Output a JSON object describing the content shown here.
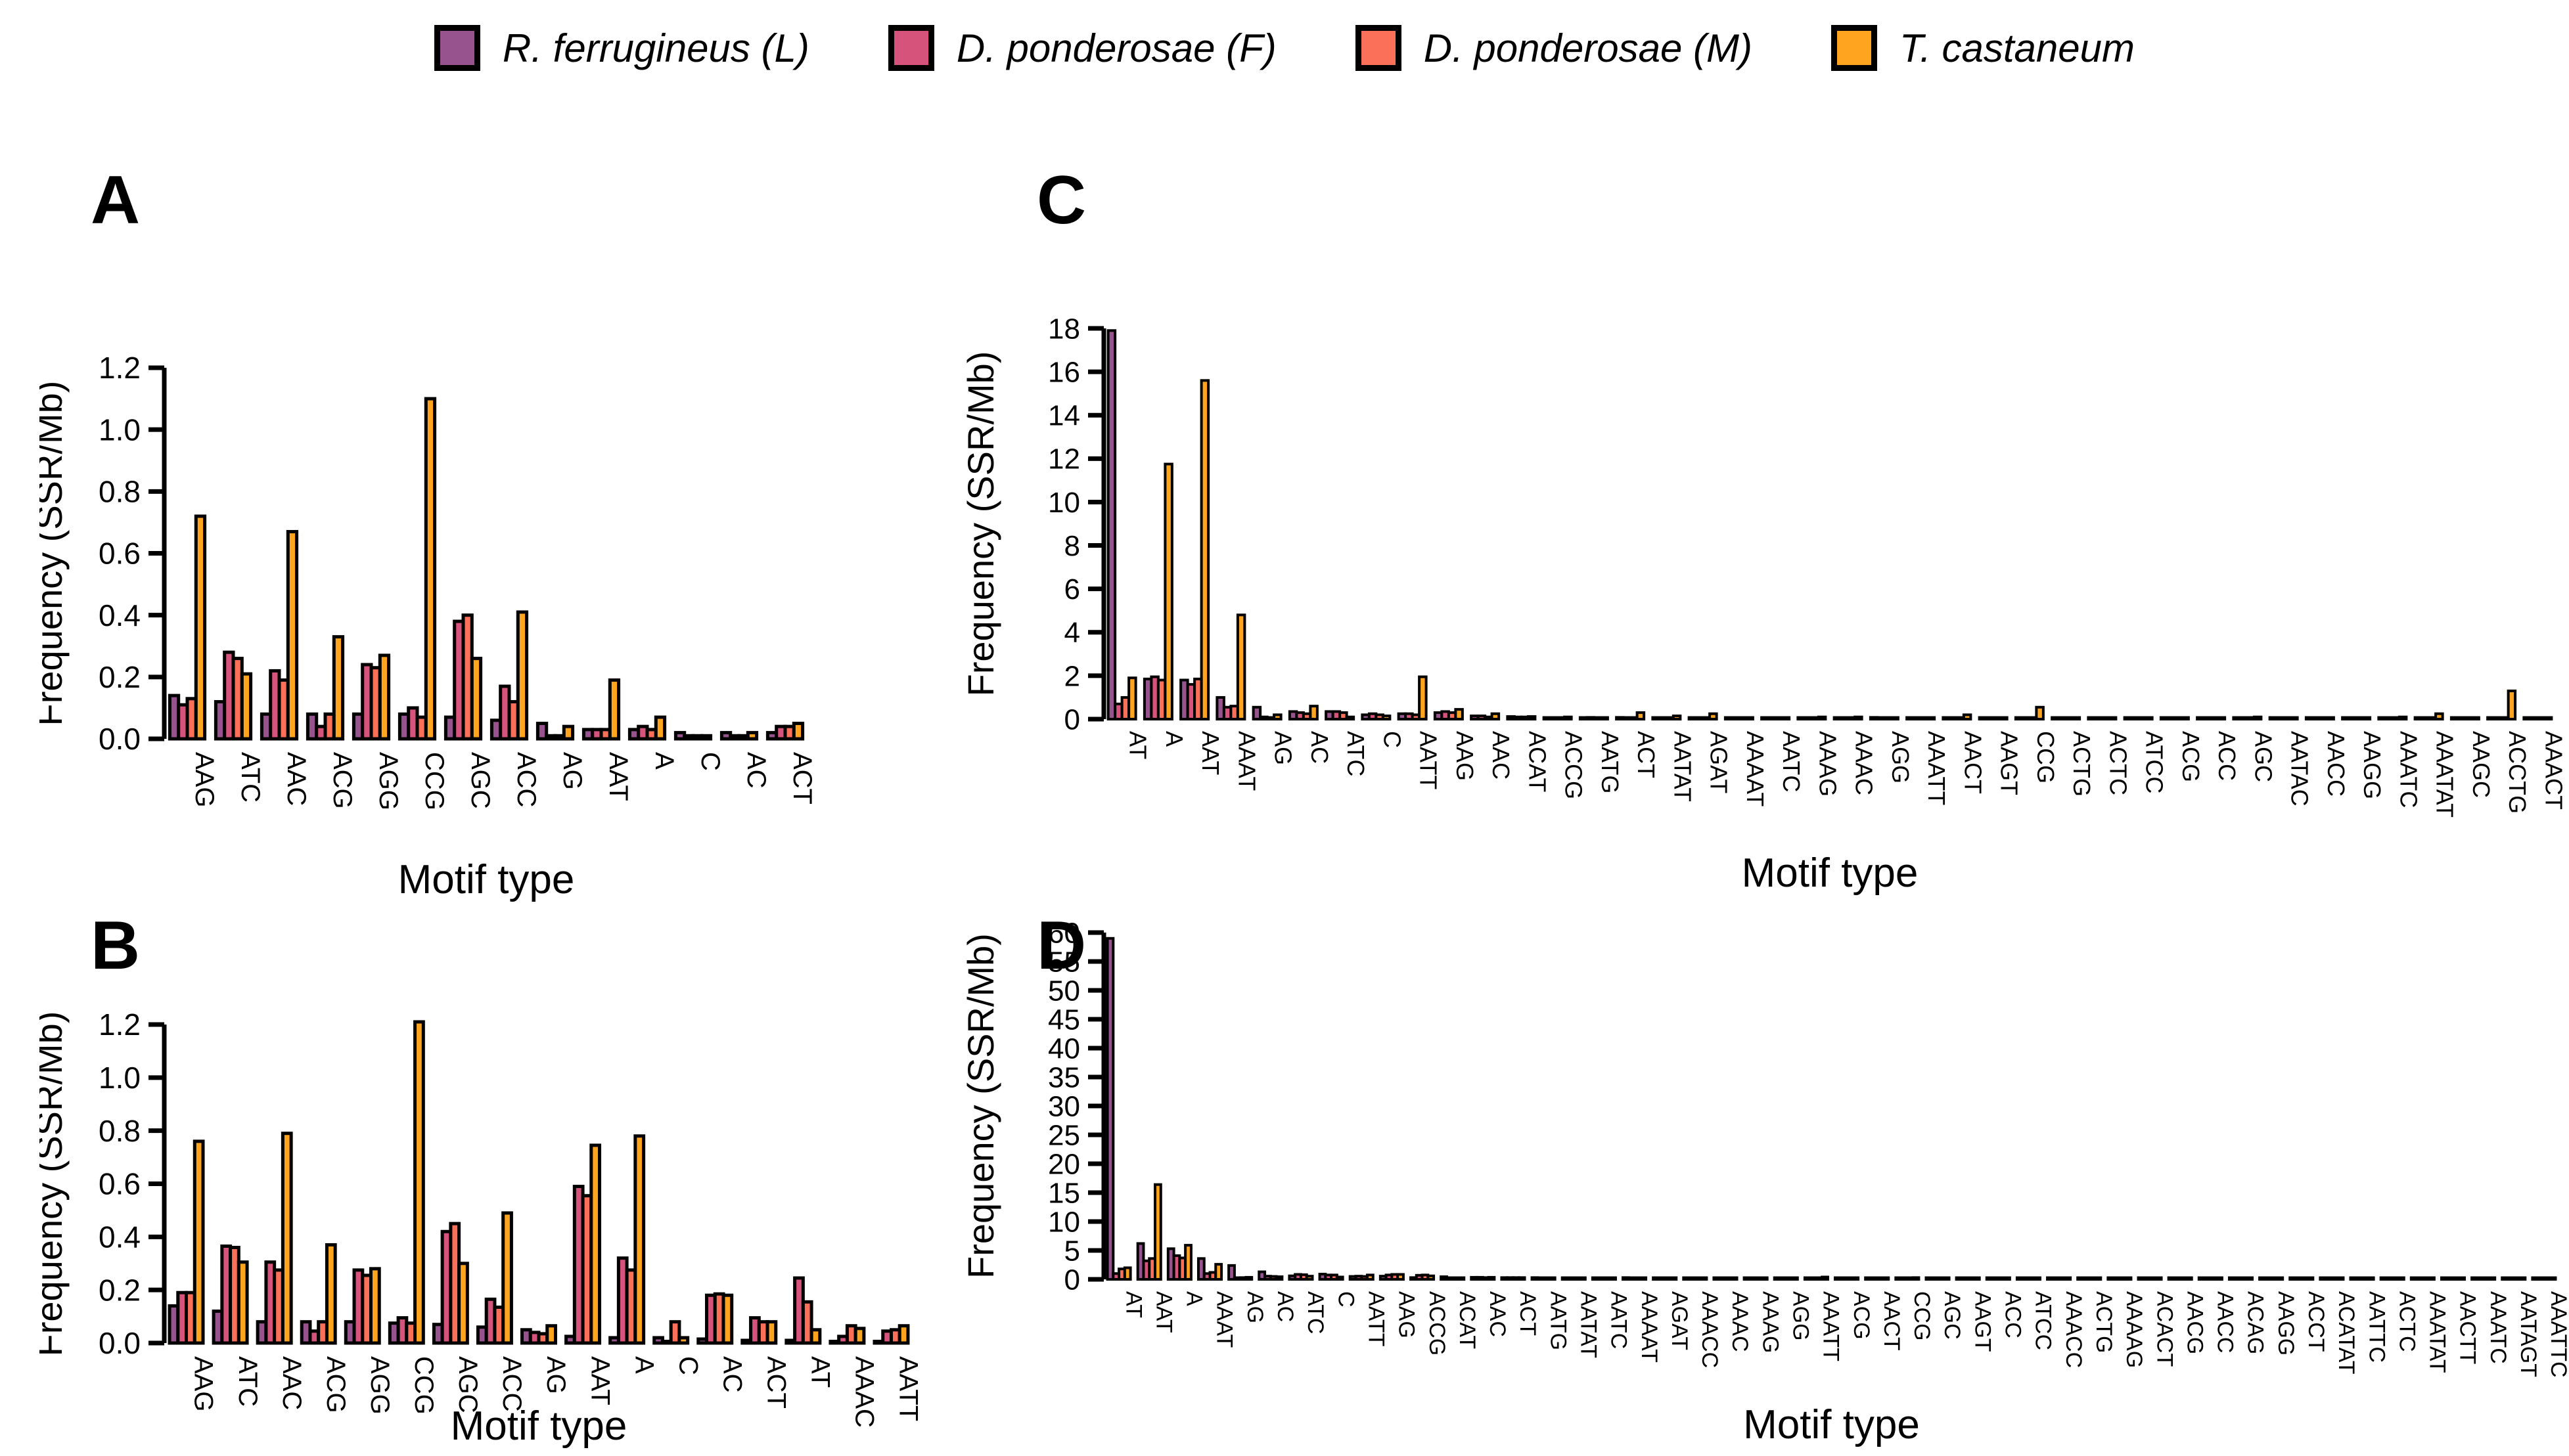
{
  "figure": {
    "background": "#ffffff"
  },
  "legend": {
    "items": [
      {
        "label": "R. ferrugineus (L)",
        "color": "#96538D"
      },
      {
        "label": "D. ponderosae (F)",
        "color": "#D6537C"
      },
      {
        "label": "D. ponderosae (M)",
        "color": "#FB7059"
      },
      {
        "label": "T. castaneum",
        "color": "#FFA41F"
      }
    ]
  },
  "chart_data": [
    {
      "id": "A",
      "type": "bar",
      "panel_label": "A",
      "xlabel": "Motif type",
      "ylabel": "Frequency (SSR/Mb)",
      "ylim": [
        0,
        1.2
      ],
      "yticks": [
        0,
        0.2,
        0.4,
        0.6,
        0.8,
        1.0,
        1.2
      ],
      "ytick_decimals": 1,
      "grid": false,
      "legend_position": "top",
      "categories": [
        "AAG",
        "ATC",
        "AAC",
        "ACG",
        "AGG",
        "CCG",
        "AGC",
        "ACC",
        "AG",
        "AAT",
        "A",
        "C",
        "AC",
        "ACT"
      ],
      "series": [
        {
          "name": "R. ferrugineus (L)",
          "color": "#96538D",
          "values": [
            0.14,
            0.12,
            0.08,
            0.08,
            0.08,
            0.08,
            0.07,
            0.06,
            0.05,
            0.03,
            0.03,
            0.02,
            0.02,
            0.02
          ]
        },
        {
          "name": "D. ponderosae (F)",
          "color": "#D6537C",
          "values": [
            0.11,
            0.28,
            0.22,
            0.04,
            0.24,
            0.1,
            0.38,
            0.17,
            0.01,
            0.03,
            0.04,
            0.01,
            0.01,
            0.04
          ]
        },
        {
          "name": "D. ponderosae (M)",
          "color": "#FB7059",
          "values": [
            0.13,
            0.26,
            0.19,
            0.08,
            0.23,
            0.07,
            0.4,
            0.12,
            0.01,
            0.03,
            0.03,
            0.01,
            0.01,
            0.04
          ]
        },
        {
          "name": "T. castaneum",
          "color": "#FFA41F",
          "values": [
            0.72,
            0.21,
            0.67,
            0.33,
            0.27,
            1.1,
            0.26,
            0.41,
            0.04,
            0.19,
            0.07,
            0.01,
            0.02,
            0.05
          ]
        }
      ]
    },
    {
      "id": "B",
      "type": "bar",
      "panel_label": "B",
      "xlabel": "Motif type",
      "ylabel": "Frequency (SSR/Mb)",
      "ylim": [
        0,
        1.2
      ],
      "yticks": [
        0,
        0.2,
        0.4,
        0.6,
        0.8,
        1.0,
        1.2
      ],
      "ytick_decimals": 1,
      "grid": false,
      "categories": [
        "AAG",
        "ATC",
        "AAC",
        "ACG",
        "AGG",
        "CCG",
        "AGC",
        "ACC",
        "AG",
        "AAT",
        "A",
        "C",
        "AC",
        "ACT",
        "AT",
        "AAAC",
        "AATT"
      ],
      "series": [
        {
          "name": "R. ferrugineus (L)",
          "color": "#96538D",
          "values": [
            0.14,
            0.12,
            0.08,
            0.08,
            0.08,
            0.075,
            0.07,
            0.06,
            0.05,
            0.025,
            0.02,
            0.02,
            0.015,
            0.01,
            0.01,
            0.005,
            0.005
          ]
        },
        {
          "name": "D. ponderosae (F)",
          "color": "#D6537C",
          "values": [
            0.19,
            0.365,
            0.305,
            0.045,
            0.275,
            0.095,
            0.42,
            0.165,
            0.04,
            0.59,
            0.32,
            0.005,
            0.18,
            0.095,
            0.245,
            0.025,
            0.045
          ]
        },
        {
          "name": "D. ponderosae (M)",
          "color": "#FB7059",
          "values": [
            0.19,
            0.36,
            0.275,
            0.08,
            0.255,
            0.075,
            0.45,
            0.135,
            0.035,
            0.555,
            0.275,
            0.08,
            0.185,
            0.08,
            0.155,
            0.065,
            0.05
          ]
        },
        {
          "name": "T. castaneum",
          "color": "#FFA41F",
          "values": [
            0.76,
            0.305,
            0.79,
            0.37,
            0.28,
            1.21,
            0.3,
            0.49,
            0.065,
            0.745,
            0.78,
            0.02,
            0.18,
            0.08,
            0.05,
            0.055,
            0.065
          ]
        }
      ]
    },
    {
      "id": "C",
      "type": "bar",
      "panel_label": "C",
      "xlabel": "Motif type",
      "ylabel": "Frequency (SSR/Mb)",
      "ylim": [
        0,
        18
      ],
      "yticks": [
        0,
        2,
        4,
        6,
        8,
        10,
        12,
        14,
        16,
        18
      ],
      "ytick_decimals": 0,
      "grid": false,
      "categories": [
        "AT",
        "A",
        "AAT",
        "AAAT",
        "AG",
        "AC",
        "ATC",
        "C",
        "AATT",
        "AAG",
        "AAC",
        "ACAT",
        "ACCG",
        "AATG",
        "ACT",
        "AATAT",
        "AGAT",
        "AAAAT",
        "AATC",
        "AAAG",
        "AAAC",
        "AGG",
        "AAATT",
        "AACT",
        "AAGT",
        "CCG",
        "ACTG",
        "ACTC",
        "ATCC",
        "ACG",
        "ACC",
        "AGC",
        "AATAC",
        "AACC",
        "AAGG",
        "AAATC",
        "AAATAT",
        "AAGC",
        "ACCTG",
        "AAACT"
      ],
      "series": [
        {
          "name": "R. ferrugineus (L)",
          "color": "#96538D",
          "values": [
            17.9,
            1.85,
            1.8,
            1.0,
            0.55,
            0.35,
            0.35,
            0.2,
            0.25,
            0.3,
            0.15,
            0.12,
            0.06,
            0.06,
            0.08,
            0.06,
            0.06,
            0.06,
            0.05,
            0.05,
            0.05,
            0.08,
            0.04,
            0.04,
            0.04,
            0.05,
            0.04,
            0.04,
            0.04,
            0.05,
            0.05,
            0.05,
            0.03,
            0.03,
            0.04,
            0.03,
            0.03,
            0.03,
            0.03,
            0.03
          ]
        },
        {
          "name": "D. ponderosae (F)",
          "color": "#D6537C",
          "values": [
            0.7,
            1.95,
            1.6,
            0.55,
            0.1,
            0.3,
            0.35,
            0.25,
            0.25,
            0.35,
            0.15,
            0.1,
            0.05,
            0.08,
            0.05,
            0.05,
            0.05,
            0.04,
            0.05,
            0.05,
            0.05,
            0.05,
            0.03,
            0.04,
            0.03,
            0.03,
            0.03,
            0.03,
            0.03,
            0.03,
            0.03,
            0.03,
            0.02,
            0.03,
            0.03,
            0.02,
            0.02,
            0.03,
            0.02,
            0.02
          ]
        },
        {
          "name": "D. ponderosae (M)",
          "color": "#FB7059",
          "values": [
            1.0,
            1.8,
            1.85,
            0.6,
            0.06,
            0.25,
            0.3,
            0.2,
            0.2,
            0.3,
            0.1,
            0.1,
            0.05,
            0.06,
            0.05,
            0.05,
            0.05,
            0.04,
            0.05,
            0.05,
            0.05,
            0.05,
            0.03,
            0.04,
            0.03,
            0.03,
            0.03,
            0.03,
            0.03,
            0.03,
            0.03,
            0.03,
            0.02,
            0.03,
            0.03,
            0.02,
            0.02,
            0.03,
            0.02,
            0.02
          ]
        },
        {
          "name": "T. castaneum",
          "color": "#FFA41F",
          "values": [
            1.9,
            11.75,
            15.6,
            4.8,
            0.2,
            0.6,
            0.1,
            0.15,
            1.95,
            0.45,
            0.25,
            0.12,
            0.1,
            0.06,
            0.3,
            0.15,
            0.25,
            0.06,
            0.06,
            0.1,
            0.1,
            0.06,
            0.06,
            0.2,
            0.05,
            0.55,
            0.05,
            0.04,
            0.04,
            0.06,
            0.06,
            0.1,
            0.04,
            0.04,
            0.04,
            0.1,
            0.25,
            0.04,
            1.3,
            0.05
          ]
        }
      ]
    },
    {
      "id": "D",
      "type": "bar",
      "panel_label": "D",
      "xlabel": "Motif type",
      "ylabel": "Frequency (SSR/Mb)",
      "ylim": [
        0,
        60
      ],
      "yticks": [
        0,
        5,
        10,
        15,
        20,
        25,
        30,
        35,
        40,
        45,
        50,
        55,
        60
      ],
      "ytick_decimals": 0,
      "grid": false,
      "categories": [
        "AT",
        "AAT",
        "A",
        "AAAT",
        "AG",
        "AC",
        "ATC",
        "C",
        "AATT",
        "AAG",
        "ACCG",
        "ACAT",
        "AAC",
        "ACT",
        "AATG",
        "AATAT",
        "AATC",
        "AAAAT",
        "AGAT",
        "AAACC",
        "AAAC",
        "AAAG",
        "AGG",
        "AAATT",
        "ACG",
        "AACT",
        "CCG",
        "AGC",
        "AAGT",
        "ACC",
        "ATCC",
        "AAACC",
        "ACTG",
        "AAAAG",
        "ACACT",
        "AACG",
        "AACC",
        "ACAG",
        "AAGG",
        "ACCT",
        "ACATAT",
        "AATTC",
        "ACTC",
        "AAATAT",
        "AACTT",
        "AAATC",
        "AATAGT",
        "AAATTC"
      ],
      "series": [
        {
          "name": "R. ferrugineus (L)",
          "color": "#96538D",
          "values": [
            59,
            6.2,
            5.3,
            3.6,
            2.4,
            1.3,
            0.6,
            0.9,
            0.5,
            0.55,
            0.3,
            0.45,
            0.35,
            0.3,
            0.3,
            0.25,
            0.25,
            0.3,
            0.2,
            0.12,
            0.2,
            0.15,
            0.2,
            0.12,
            0.15,
            0.12,
            0.1,
            0.1,
            0.08,
            0.1,
            0.06,
            0.06,
            0.1,
            0.06,
            0.06,
            0.06,
            0.06,
            0.08,
            0.06,
            0.05,
            0.05,
            0.05,
            0.05,
            0.05,
            0.05,
            0.04,
            0.04,
            0.04
          ]
        },
        {
          "name": "D. ponderosae (F)",
          "color": "#D6537C",
          "values": [
            1.0,
            3.2,
            4.1,
            1.0,
            0.25,
            0.55,
            0.85,
            0.75,
            0.55,
            0.75,
            0.7,
            0.2,
            0.35,
            0.3,
            0.25,
            0.25,
            0.2,
            0.1,
            0.15,
            0.15,
            0.1,
            0.1,
            0.1,
            0.08,
            0.1,
            0.08,
            0.06,
            0.1,
            0.06,
            0.08,
            0.05,
            0.05,
            0.04,
            0.05,
            0.04,
            0.05,
            0.05,
            0.04,
            0.04,
            0.04,
            0.03,
            0.03,
            0.03,
            0.03,
            0.03,
            0.03,
            0.03,
            0.03
          ]
        },
        {
          "name": "D. ponderosae (M)",
          "color": "#FB7059",
          "values": [
            1.8,
            3.6,
            3.7,
            1.2,
            0.3,
            0.5,
            0.8,
            0.75,
            0.5,
            0.85,
            0.75,
            0.2,
            0.3,
            0.3,
            0.25,
            0.2,
            0.2,
            0.1,
            0.15,
            0.15,
            0.1,
            0.1,
            0.1,
            0.08,
            0.1,
            0.08,
            0.06,
            0.1,
            0.06,
            0.08,
            0.05,
            0.05,
            0.04,
            0.05,
            0.04,
            0.05,
            0.05,
            0.04,
            0.04,
            0.04,
            0.03,
            0.03,
            0.03,
            0.03,
            0.03,
            0.03,
            0.03,
            0.03
          ]
        },
        {
          "name": "T. castaneum",
          "color": "#FFA41F",
          "values": [
            2.0,
            16.4,
            5.9,
            2.6,
            0.35,
            0.45,
            0.55,
            0.4,
            0.75,
            0.85,
            0.6,
            0.2,
            0.35,
            0.3,
            0.25,
            0.2,
            0.2,
            0.1,
            0.15,
            0.1,
            0.1,
            0.15,
            0.1,
            0.4,
            0.1,
            0.1,
            0.3,
            0.2,
            0.1,
            0.1,
            0.05,
            0.05,
            0.05,
            0.05,
            0.04,
            0.05,
            0.05,
            0.05,
            0.04,
            0.04,
            0.03,
            0.03,
            0.03,
            0.03,
            0.03,
            0.03,
            0.03,
            0.03
          ]
        }
      ]
    }
  ]
}
